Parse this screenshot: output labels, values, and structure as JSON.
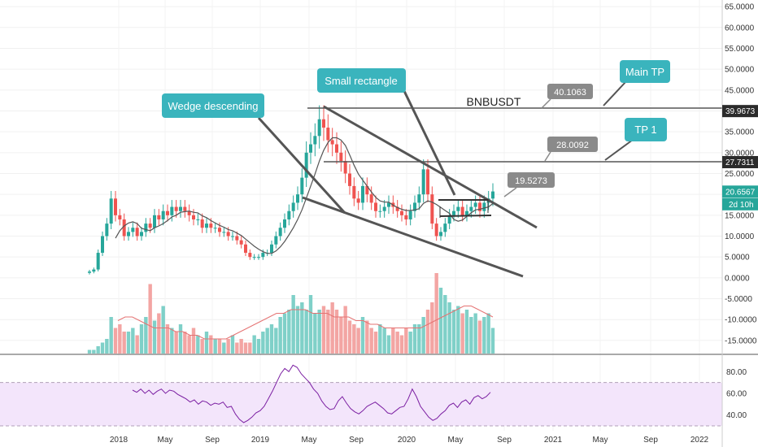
{
  "chart_data": {
    "type": "candlestick",
    "symbol": "BNBUSDT",
    "price_axis": {
      "ticks": [
        "65.0000",
        "60.0000",
        "55.0000",
        "50.0000",
        "45.0000",
        "40.0000",
        "35.0000",
        "30.0000",
        "25.0000",
        "20.0000",
        "15.0000",
        "10.0000",
        "5.0000",
        "0.0000",
        "-5.0000",
        "-10.0000",
        "-15.0000"
      ],
      "range": [
        -17,
        67
      ],
      "price_tags": [
        {
          "value": 39.9673,
          "label": "39.9673",
          "style": "dark"
        },
        {
          "value": 27.7311,
          "label": "27.7311",
          "style": "dark"
        },
        {
          "value": 20.6567,
          "label": "20.6567",
          "style": "teal"
        }
      ],
      "countdown": "2d 10h"
    },
    "rsi_axis": {
      "ticks": [
        "80.00",
        "60.00",
        "40.00"
      ],
      "range": [
        27,
        90
      ],
      "band": [
        30,
        70
      ]
    },
    "time_axis": {
      "labels": [
        "2018",
        "May",
        "Sep",
        "2019",
        "May",
        "Sep",
        "2020",
        "May",
        "Sep",
        "2021",
        "May",
        "Sep",
        "2022"
      ]
    },
    "levels": [
      {
        "name": "Main TP",
        "value": 39.9673
      },
      {
        "name": "TP 1",
        "value": 27.7311
      }
    ],
    "annotations": {
      "wedge": "Wedge descending",
      "rectangle": "Small rectangle",
      "main_tp": "Main TP",
      "tp1": "TP 1",
      "pill_40": "40.1063",
      "pill_28": "28.0092",
      "pill_19": "19.5273"
    },
    "close": [
      1.5,
      2,
      6,
      10,
      13,
      19,
      15,
      14,
      10,
      11,
      12,
      10,
      11,
      13,
      12,
      15,
      14,
      16,
      15,
      17,
      16,
      17,
      16,
      15,
      14,
      14,
      12,
      13,
      12,
      12,
      11,
      11,
      10,
      10,
      9,
      8,
      6,
      5,
      5,
      5,
      6,
      6,
      8,
      10,
      12,
      14,
      16,
      18,
      20,
      24,
      30,
      32,
      34,
      38,
      36,
      33,
      32,
      30,
      28,
      25,
      22,
      19,
      18,
      22,
      20,
      18,
      16,
      16,
      17,
      18,
      17,
      16,
      15,
      14,
      16,
      18,
      20,
      26,
      20,
      13,
      10,
      11,
      13,
      15,
      16,
      17,
      15,
      16,
      17,
      18,
      16,
      18,
      19,
      20.7
    ],
    "volume": [
      1,
      1,
      2,
      3,
      4,
      10,
      7,
      8,
      6,
      6,
      7,
      5,
      8,
      10,
      19,
      9,
      11,
      13,
      8,
      7,
      6,
      8,
      6,
      5,
      7,
      5,
      4,
      6,
      5,
      4,
      4,
      3,
      4,
      5,
      3,
      4,
      3,
      3,
      5,
      4,
      6,
      7,
      8,
      7,
      10,
      11,
      12,
      16,
      13,
      14,
      12,
      16,
      11,
      12,
      13,
      12,
      14,
      12,
      10,
      13,
      9,
      8,
      7,
      10,
      9,
      7,
      6,
      8,
      7,
      5,
      7,
      6,
      5,
      7,
      6,
      8,
      8,
      10,
      12,
      14,
      22,
      18,
      16,
      14,
      12,
      13,
      11,
      12,
      10,
      11,
      9,
      10,
      11,
      7
    ],
    "rsi": [
      63,
      61,
      64,
      60,
      63,
      59,
      62,
      64,
      60,
      63,
      62,
      59,
      57,
      55,
      52,
      54,
      50,
      53,
      52,
      49,
      51,
      50,
      52,
      47,
      48,
      41,
      36,
      33,
      35,
      38,
      42,
      44,
      48,
      55,
      62,
      70,
      78,
      83,
      80,
      86,
      84,
      78,
      74,
      70,
      64,
      60,
      53,
      48,
      45,
      46,
      53,
      57,
      51,
      46,
      43,
      41,
      44,
      48,
      50,
      52,
      49,
      46,
      42,
      41,
      44,
      47,
      48,
      55,
      64,
      57,
      48,
      43,
      38,
      35,
      37,
      41,
      44,
      49,
      51,
      47,
      52,
      54,
      50,
      56,
      58,
      55,
      57,
      61
    ],
    "volume_ma": [
      9,
      10,
      10,
      9,
      8,
      7,
      7,
      7,
      6,
      6,
      5,
      5,
      4,
      4,
      4,
      4,
      5,
      6,
      7,
      8,
      9,
      10,
      11,
      11,
      12,
      12,
      12,
      11,
      11,
      11,
      10,
      10,
      10,
      9,
      9,
      8,
      8,
      7,
      7,
      7,
      7,
      7,
      7,
      8,
      9,
      10,
      11,
      12,
      13,
      13,
      12,
      11,
      10
    ]
  }
}
